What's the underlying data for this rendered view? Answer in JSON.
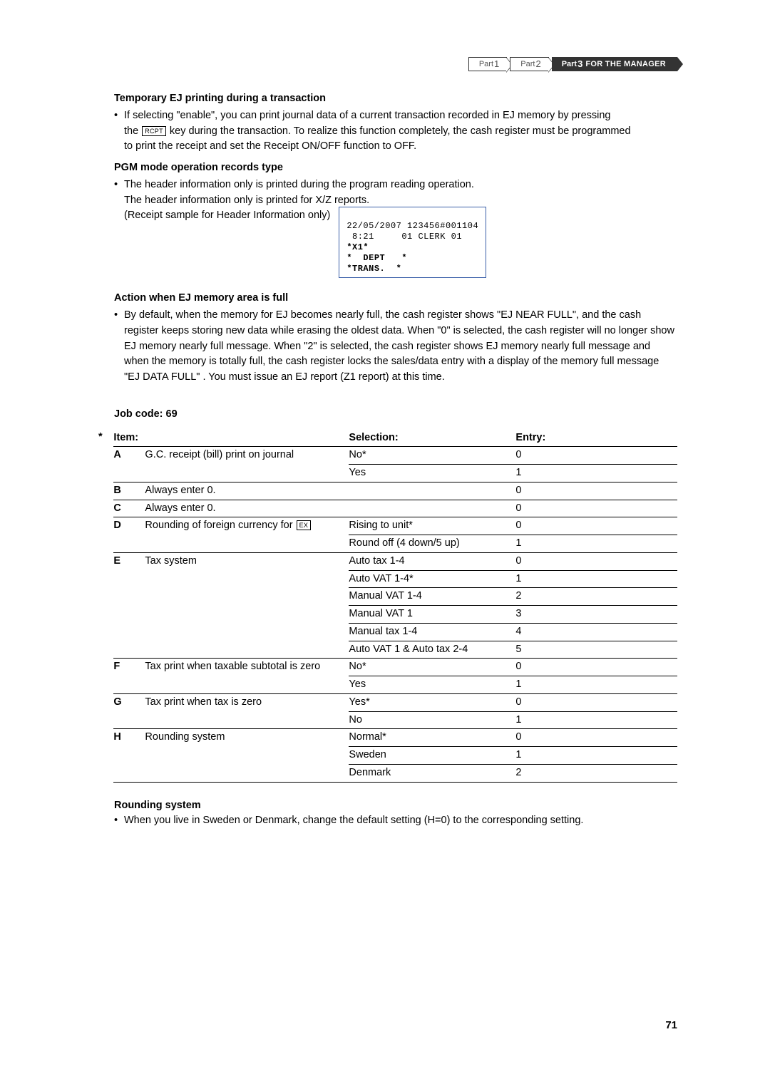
{
  "breadcrumb": {
    "p1": "Part",
    "p1n": "1",
    "p2": "Part",
    "p2n": "2",
    "p3": "Part",
    "p3n": "3",
    "p3label": "FOR THE MANAGER"
  },
  "section1": {
    "title": "Temporary EJ printing during a transaction",
    "line1a": "If selecting \"enable\", you can print journal data of a current transaction recorded in EJ memory by pressing",
    "line1b_pre": "the ",
    "key_rcpt": "RCPT",
    "line1b_post": " key during the transaction.  To realize this function completely, the cash register must be programmed",
    "line1c": "to print the receipt and set the Receipt ON/OFF function to OFF."
  },
  "section2": {
    "title": "PGM mode operation records type",
    "line1": "The header information only is printed during the program reading operation.",
    "line2": "The header information only is printed for X/Z reports.",
    "line3": "(Receipt sample for Header Information only)"
  },
  "receipt": {
    "l1": "22/05/2007 123456#001104",
    "l2": " 8:21     01 CLERK 01",
    "l3": "*X1*",
    "l4": "*  DEPT   *",
    "l5": "*TRANS.  *"
  },
  "section3": {
    "title": "Action when EJ memory area is full",
    "text": "By default, when the memory for EJ becomes nearly full, the cash register shows \"EJ NEAR FULL\", and the cash register keeps storing new data while erasing the oldest data.  When \"0\" is selected, the cash register will no longer show EJ memory nearly full message.  When \"2\" is selected, the cash register shows EJ memory nearly full message and when the memory is totally full, the cash register locks the sales/data entry with a display of the memory full message \"EJ DATA FULL\" .  You must issue an EJ report (Z1 report) at this time."
  },
  "jobcode": "Job code:  69",
  "table": {
    "star": "*",
    "hdr_item": "Item:",
    "hdr_sel": "Selection:",
    "hdr_entry": "Entry:",
    "key_ex": "EX",
    "rows": [
      {
        "letter": "A",
        "item": "G.C. receipt (bill) print on journal",
        "sel": "No*",
        "entry": "0"
      },
      {
        "letter": "",
        "item": "",
        "sel": "Yes",
        "entry": "1"
      },
      {
        "letter": "B",
        "item": "Always enter 0.",
        "sel": "",
        "entry": "0"
      },
      {
        "letter": "C",
        "item": "Always enter 0.",
        "sel": "",
        "entry": "0"
      },
      {
        "letter": "D",
        "item": "Rounding of foreign currency for [EX]",
        "sel": "Rising to unit*",
        "entry": "0"
      },
      {
        "letter": "",
        "item": "",
        "sel": "Round off (4 down/5 up)",
        "entry": "1"
      },
      {
        "letter": "E",
        "item": "Tax system",
        "sel": "Auto tax 1-4",
        "entry": "0"
      },
      {
        "letter": "",
        "item": "",
        "sel": "Auto VAT 1-4*",
        "entry": "1"
      },
      {
        "letter": "",
        "item": "",
        "sel": "Manual VAT 1-4",
        "entry": "2"
      },
      {
        "letter": "",
        "item": "",
        "sel": "Manual VAT 1",
        "entry": "3"
      },
      {
        "letter": "",
        "item": "",
        "sel": "Manual tax 1-4",
        "entry": "4"
      },
      {
        "letter": "",
        "item": "",
        "sel": "Auto VAT 1 & Auto tax 2-4",
        "entry": "5"
      },
      {
        "letter": "F",
        "item": "Tax print when taxable subtotal is zero",
        "sel": "No*",
        "entry": "0"
      },
      {
        "letter": "",
        "item": "",
        "sel": "Yes",
        "entry": "1"
      },
      {
        "letter": "G",
        "item": "Tax print when tax is zero",
        "sel": "Yes*",
        "entry": "0"
      },
      {
        "letter": "",
        "item": "",
        "sel": "No",
        "entry": "1"
      },
      {
        "letter": "H",
        "item": "Rounding system",
        "sel": "Normal*",
        "entry": "0"
      },
      {
        "letter": "",
        "item": "",
        "sel": "Sweden",
        "entry": "1"
      },
      {
        "letter": "",
        "item": "",
        "sel": "Denmark",
        "entry": "2"
      }
    ]
  },
  "section4": {
    "title": "Rounding system",
    "text": "When you live in Sweden or Denmark, change the default setting (H=0) to the corresponding setting."
  },
  "pagenum": "71"
}
